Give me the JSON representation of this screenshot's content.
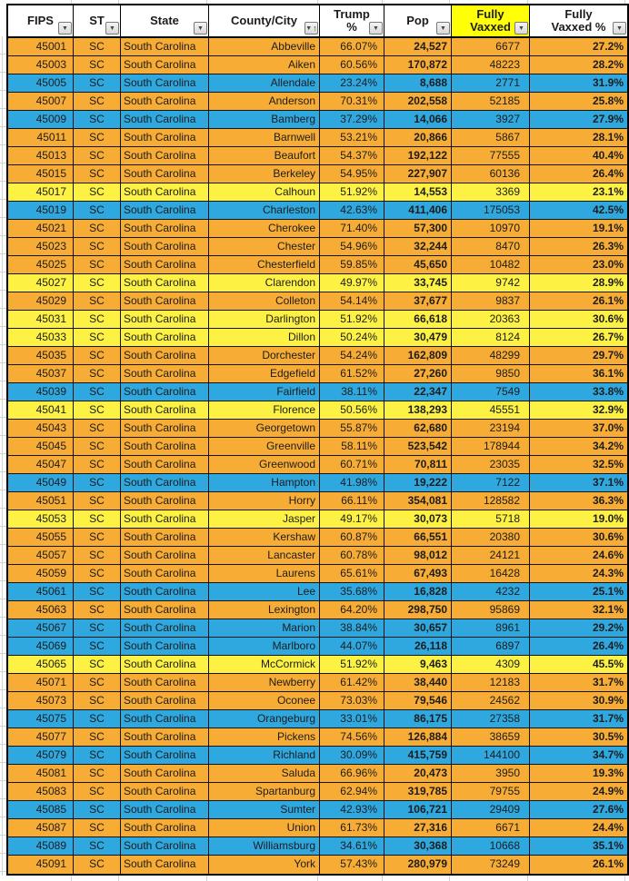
{
  "colors": {
    "orange": "#F7AC36",
    "blue": "#2FA8DF",
    "yellow": "#FDF243",
    "header_yellow": "#FFFF05",
    "border": "#141414"
  },
  "icons": {
    "filter_dropdown": "▼",
    "sort_ascending": "↑"
  },
  "table": {
    "columns": [
      {
        "key": "fips",
        "label": "FIPS",
        "sorted": false
      },
      {
        "key": "st",
        "label": "ST",
        "sorted": false
      },
      {
        "key": "state",
        "label": "State",
        "sorted": false
      },
      {
        "key": "county",
        "label": "County/City",
        "sorted": true
      },
      {
        "key": "trump_pct",
        "label": "Trump\n%",
        "sorted": false
      },
      {
        "key": "pop",
        "label": "Pop",
        "sorted": false
      },
      {
        "key": "fully_vaxxed",
        "label": "Fully\nVaxxed",
        "sorted": false
      },
      {
        "key": "fully_vaxxed_pct",
        "label": "Fully\nVaxxed %",
        "sorted": false
      }
    ],
    "rows": [
      {
        "fips": "45001",
        "st": "SC",
        "state": "South Carolina",
        "county": "Abbeville",
        "trump_pct": "66.07%",
        "pop": "24,527",
        "fully_vaxxed": "6677",
        "fully_vaxxed_pct": "27.2%",
        "color": "orange"
      },
      {
        "fips": "45003",
        "st": "SC",
        "state": "South Carolina",
        "county": "Aiken",
        "trump_pct": "60.56%",
        "pop": "170,872",
        "fully_vaxxed": "48223",
        "fully_vaxxed_pct": "28.2%",
        "color": "orange"
      },
      {
        "fips": "45005",
        "st": "SC",
        "state": "South Carolina",
        "county": "Allendale",
        "trump_pct": "23.24%",
        "pop": "8,688",
        "fully_vaxxed": "2771",
        "fully_vaxxed_pct": "31.9%",
        "color": "blue"
      },
      {
        "fips": "45007",
        "st": "SC",
        "state": "South Carolina",
        "county": "Anderson",
        "trump_pct": "70.31%",
        "pop": "202,558",
        "fully_vaxxed": "52185",
        "fully_vaxxed_pct": "25.8%",
        "color": "orange"
      },
      {
        "fips": "45009",
        "st": "SC",
        "state": "South Carolina",
        "county": "Bamberg",
        "trump_pct": "37.29%",
        "pop": "14,066",
        "fully_vaxxed": "3927",
        "fully_vaxxed_pct": "27.9%",
        "color": "blue"
      },
      {
        "fips": "45011",
        "st": "SC",
        "state": "South Carolina",
        "county": "Barnwell",
        "trump_pct": "53.21%",
        "pop": "20,866",
        "fully_vaxxed": "5867",
        "fully_vaxxed_pct": "28.1%",
        "color": "orange"
      },
      {
        "fips": "45013",
        "st": "SC",
        "state": "South Carolina",
        "county": "Beaufort",
        "trump_pct": "54.37%",
        "pop": "192,122",
        "fully_vaxxed": "77555",
        "fully_vaxxed_pct": "40.4%",
        "color": "orange"
      },
      {
        "fips": "45015",
        "st": "SC",
        "state": "South Carolina",
        "county": "Berkeley",
        "trump_pct": "54.95%",
        "pop": "227,907",
        "fully_vaxxed": "60136",
        "fully_vaxxed_pct": "26.4%",
        "color": "orange"
      },
      {
        "fips": "45017",
        "st": "SC",
        "state": "South Carolina",
        "county": "Calhoun",
        "trump_pct": "51.92%",
        "pop": "14,553",
        "fully_vaxxed": "3369",
        "fully_vaxxed_pct": "23.1%",
        "color": "yellow"
      },
      {
        "fips": "45019",
        "st": "SC",
        "state": "South Carolina",
        "county": "Charleston",
        "trump_pct": "42.63%",
        "pop": "411,406",
        "fully_vaxxed": "175053",
        "fully_vaxxed_pct": "42.5%",
        "color": "blue"
      },
      {
        "fips": "45021",
        "st": "SC",
        "state": "South Carolina",
        "county": "Cherokee",
        "trump_pct": "71.40%",
        "pop": "57,300",
        "fully_vaxxed": "10970",
        "fully_vaxxed_pct": "19.1%",
        "color": "orange"
      },
      {
        "fips": "45023",
        "st": "SC",
        "state": "South Carolina",
        "county": "Chester",
        "trump_pct": "54.96%",
        "pop": "32,244",
        "fully_vaxxed": "8470",
        "fully_vaxxed_pct": "26.3%",
        "color": "orange"
      },
      {
        "fips": "45025",
        "st": "SC",
        "state": "South Carolina",
        "county": "Chesterfield",
        "trump_pct": "59.85%",
        "pop": "45,650",
        "fully_vaxxed": "10482",
        "fully_vaxxed_pct": "23.0%",
        "color": "orange"
      },
      {
        "fips": "45027",
        "st": "SC",
        "state": "South Carolina",
        "county": "Clarendon",
        "trump_pct": "49.97%",
        "pop": "33,745",
        "fully_vaxxed": "9742",
        "fully_vaxxed_pct": "28.9%",
        "color": "yellow"
      },
      {
        "fips": "45029",
        "st": "SC",
        "state": "South Carolina",
        "county": "Colleton",
        "trump_pct": "54.14%",
        "pop": "37,677",
        "fully_vaxxed": "9837",
        "fully_vaxxed_pct": "26.1%",
        "color": "orange"
      },
      {
        "fips": "45031",
        "st": "SC",
        "state": "South Carolina",
        "county": "Darlington",
        "trump_pct": "51.92%",
        "pop": "66,618",
        "fully_vaxxed": "20363",
        "fully_vaxxed_pct": "30.6%",
        "color": "yellow"
      },
      {
        "fips": "45033",
        "st": "SC",
        "state": "South Carolina",
        "county": "Dillon",
        "trump_pct": "50.24%",
        "pop": "30,479",
        "fully_vaxxed": "8124",
        "fully_vaxxed_pct": "26.7%",
        "color": "yellow"
      },
      {
        "fips": "45035",
        "st": "SC",
        "state": "South Carolina",
        "county": "Dorchester",
        "trump_pct": "54.24%",
        "pop": "162,809",
        "fully_vaxxed": "48299",
        "fully_vaxxed_pct": "29.7%",
        "color": "orange"
      },
      {
        "fips": "45037",
        "st": "SC",
        "state": "South Carolina",
        "county": "Edgefield",
        "trump_pct": "61.52%",
        "pop": "27,260",
        "fully_vaxxed": "9850",
        "fully_vaxxed_pct": "36.1%",
        "color": "orange"
      },
      {
        "fips": "45039",
        "st": "SC",
        "state": "South Carolina",
        "county": "Fairfield",
        "trump_pct": "38.11%",
        "pop": "22,347",
        "fully_vaxxed": "7549",
        "fully_vaxxed_pct": "33.8%",
        "color": "blue"
      },
      {
        "fips": "45041",
        "st": "SC",
        "state": "South Carolina",
        "county": "Florence",
        "trump_pct": "50.56%",
        "pop": "138,293",
        "fully_vaxxed": "45551",
        "fully_vaxxed_pct": "32.9%",
        "color": "yellow"
      },
      {
        "fips": "45043",
        "st": "SC",
        "state": "South Carolina",
        "county": "Georgetown",
        "trump_pct": "55.87%",
        "pop": "62,680",
        "fully_vaxxed": "23194",
        "fully_vaxxed_pct": "37.0%",
        "color": "orange"
      },
      {
        "fips": "45045",
        "st": "SC",
        "state": "South Carolina",
        "county": "Greenville",
        "trump_pct": "58.11%",
        "pop": "523,542",
        "fully_vaxxed": "178944",
        "fully_vaxxed_pct": "34.2%",
        "color": "orange"
      },
      {
        "fips": "45047",
        "st": "SC",
        "state": "South Carolina",
        "county": "Greenwood",
        "trump_pct": "60.71%",
        "pop": "70,811",
        "fully_vaxxed": "23035",
        "fully_vaxxed_pct": "32.5%",
        "color": "orange"
      },
      {
        "fips": "45049",
        "st": "SC",
        "state": "South Carolina",
        "county": "Hampton",
        "trump_pct": "41.98%",
        "pop": "19,222",
        "fully_vaxxed": "7122",
        "fully_vaxxed_pct": "37.1%",
        "color": "blue"
      },
      {
        "fips": "45051",
        "st": "SC",
        "state": "South Carolina",
        "county": "Horry",
        "trump_pct": "66.11%",
        "pop": "354,081",
        "fully_vaxxed": "128582",
        "fully_vaxxed_pct": "36.3%",
        "color": "orange"
      },
      {
        "fips": "45053",
        "st": "SC",
        "state": "South Carolina",
        "county": "Jasper",
        "trump_pct": "49.17%",
        "pop": "30,073",
        "fully_vaxxed": "5718",
        "fully_vaxxed_pct": "19.0%",
        "color": "yellow"
      },
      {
        "fips": "45055",
        "st": "SC",
        "state": "South Carolina",
        "county": "Kershaw",
        "trump_pct": "60.87%",
        "pop": "66,551",
        "fully_vaxxed": "20380",
        "fully_vaxxed_pct": "30.6%",
        "color": "orange"
      },
      {
        "fips": "45057",
        "st": "SC",
        "state": "South Carolina",
        "county": "Lancaster",
        "trump_pct": "60.78%",
        "pop": "98,012",
        "fully_vaxxed": "24121",
        "fully_vaxxed_pct": "24.6%",
        "color": "orange"
      },
      {
        "fips": "45059",
        "st": "SC",
        "state": "South Carolina",
        "county": "Laurens",
        "trump_pct": "65.61%",
        "pop": "67,493",
        "fully_vaxxed": "16428",
        "fully_vaxxed_pct": "24.3%",
        "color": "orange"
      },
      {
        "fips": "45061",
        "st": "SC",
        "state": "South Carolina",
        "county": "Lee",
        "trump_pct": "35.68%",
        "pop": "16,828",
        "fully_vaxxed": "4232",
        "fully_vaxxed_pct": "25.1%",
        "color": "blue"
      },
      {
        "fips": "45063",
        "st": "SC",
        "state": "South Carolina",
        "county": "Lexington",
        "trump_pct": "64.20%",
        "pop": "298,750",
        "fully_vaxxed": "95869",
        "fully_vaxxed_pct": "32.1%",
        "color": "orange"
      },
      {
        "fips": "45067",
        "st": "SC",
        "state": "South Carolina",
        "county": "Marion",
        "trump_pct": "38.84%",
        "pop": "30,657",
        "fully_vaxxed": "8961",
        "fully_vaxxed_pct": "29.2%",
        "color": "blue"
      },
      {
        "fips": "45069",
        "st": "SC",
        "state": "South Carolina",
        "county": "Marlboro",
        "trump_pct": "44.07%",
        "pop": "26,118",
        "fully_vaxxed": "6897",
        "fully_vaxxed_pct": "26.4%",
        "color": "blue"
      },
      {
        "fips": "45065",
        "st": "SC",
        "state": "South Carolina",
        "county": "McCormick",
        "trump_pct": "51.92%",
        "pop": "9,463",
        "fully_vaxxed": "4309",
        "fully_vaxxed_pct": "45.5%",
        "color": "yellow"
      },
      {
        "fips": "45071",
        "st": "SC",
        "state": "South Carolina",
        "county": "Newberry",
        "trump_pct": "61.42%",
        "pop": "38,440",
        "fully_vaxxed": "12183",
        "fully_vaxxed_pct": "31.7%",
        "color": "orange"
      },
      {
        "fips": "45073",
        "st": "SC",
        "state": "South Carolina",
        "county": "Oconee",
        "trump_pct": "73.03%",
        "pop": "79,546",
        "fully_vaxxed": "24562",
        "fully_vaxxed_pct": "30.9%",
        "color": "orange"
      },
      {
        "fips": "45075",
        "st": "SC",
        "state": "South Carolina",
        "county": "Orangeburg",
        "trump_pct": "33.01%",
        "pop": "86,175",
        "fully_vaxxed": "27358",
        "fully_vaxxed_pct": "31.7%",
        "color": "blue"
      },
      {
        "fips": "45077",
        "st": "SC",
        "state": "South Carolina",
        "county": "Pickens",
        "trump_pct": "74.56%",
        "pop": "126,884",
        "fully_vaxxed": "38659",
        "fully_vaxxed_pct": "30.5%",
        "color": "orange"
      },
      {
        "fips": "45079",
        "st": "SC",
        "state": "South Carolina",
        "county": "Richland",
        "trump_pct": "30.09%",
        "pop": "415,759",
        "fully_vaxxed": "144100",
        "fully_vaxxed_pct": "34.7%",
        "color": "blue"
      },
      {
        "fips": "45081",
        "st": "SC",
        "state": "South Carolina",
        "county": "Saluda",
        "trump_pct": "66.96%",
        "pop": "20,473",
        "fully_vaxxed": "3950",
        "fully_vaxxed_pct": "19.3%",
        "color": "orange"
      },
      {
        "fips": "45083",
        "st": "SC",
        "state": "South Carolina",
        "county": "Spartanburg",
        "trump_pct": "62.94%",
        "pop": "319,785",
        "fully_vaxxed": "79755",
        "fully_vaxxed_pct": "24.9%",
        "color": "orange"
      },
      {
        "fips": "45085",
        "st": "SC",
        "state": "South Carolina",
        "county": "Sumter",
        "trump_pct": "42.93%",
        "pop": "106,721",
        "fully_vaxxed": "29409",
        "fully_vaxxed_pct": "27.6%",
        "color": "blue"
      },
      {
        "fips": "45087",
        "st": "SC",
        "state": "South Carolina",
        "county": "Union",
        "trump_pct": "61.73%",
        "pop": "27,316",
        "fully_vaxxed": "6671",
        "fully_vaxxed_pct": "24.4%",
        "color": "orange"
      },
      {
        "fips": "45089",
        "st": "SC",
        "state": "South Carolina",
        "county": "Williamsburg",
        "trump_pct": "34.61%",
        "pop": "30,368",
        "fully_vaxxed": "10668",
        "fully_vaxxed_pct": "35.1%",
        "color": "blue"
      },
      {
        "fips": "45091",
        "st": "SC",
        "state": "South Carolina",
        "county": "York",
        "trump_pct": "57.43%",
        "pop": "280,979",
        "fully_vaxxed": "73249",
        "fully_vaxxed_pct": "26.1%",
        "color": "orange"
      }
    ]
  }
}
